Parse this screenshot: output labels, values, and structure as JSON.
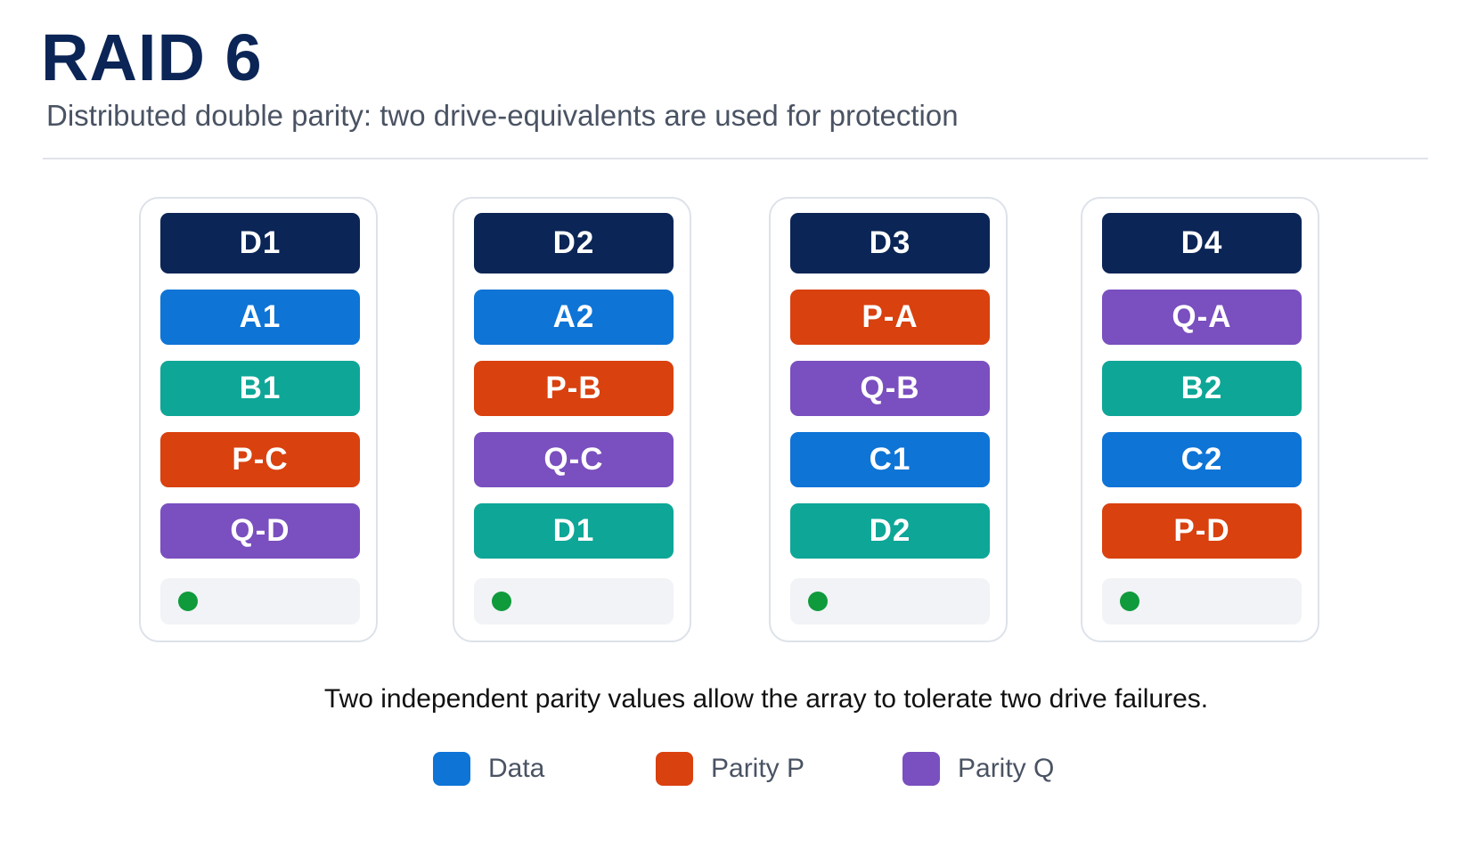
{
  "header": {
    "title": "RAID 6",
    "subtitle": "Distributed double parity: two drive-equivalents are used for protection"
  },
  "colors": {
    "header": "#0b2556",
    "data": "#0e74d6",
    "stripe_b": "#0ea697",
    "parity_p": "#d9410f",
    "parity_q": "#7a4fbf",
    "status_ok": "#0f9a3c"
  },
  "drives": [
    {
      "label": "D1",
      "blocks": [
        {
          "label": "A1",
          "kind": "data"
        },
        {
          "label": "B1",
          "kind": "stripe_b"
        },
        {
          "label": "P-C",
          "kind": "parity_p"
        },
        {
          "label": "Q-D",
          "kind": "parity_q"
        }
      ]
    },
    {
      "label": "D2",
      "blocks": [
        {
          "label": "A2",
          "kind": "data"
        },
        {
          "label": "P-B",
          "kind": "parity_p"
        },
        {
          "label": "Q-C",
          "kind": "parity_q"
        },
        {
          "label": "D1",
          "kind": "stripe_b"
        }
      ]
    },
    {
      "label": "D3",
      "blocks": [
        {
          "label": "P-A",
          "kind": "parity_p"
        },
        {
          "label": "Q-B",
          "kind": "parity_q"
        },
        {
          "label": "C1",
          "kind": "data"
        },
        {
          "label": "D2",
          "kind": "stripe_b"
        }
      ]
    },
    {
      "label": "D4",
      "blocks": [
        {
          "label": "Q-A",
          "kind": "parity_q"
        },
        {
          "label": "B2",
          "kind": "stripe_b"
        },
        {
          "label": "C2",
          "kind": "data"
        },
        {
          "label": "P-D",
          "kind": "parity_p"
        }
      ]
    }
  ],
  "caption": "Two independent parity values allow the array to tolerate two drive failures.",
  "legend": [
    {
      "label": "Data",
      "kind": "data"
    },
    {
      "label": "Parity P",
      "kind": "parity_p"
    },
    {
      "label": "Parity Q",
      "kind": "parity_q"
    }
  ]
}
